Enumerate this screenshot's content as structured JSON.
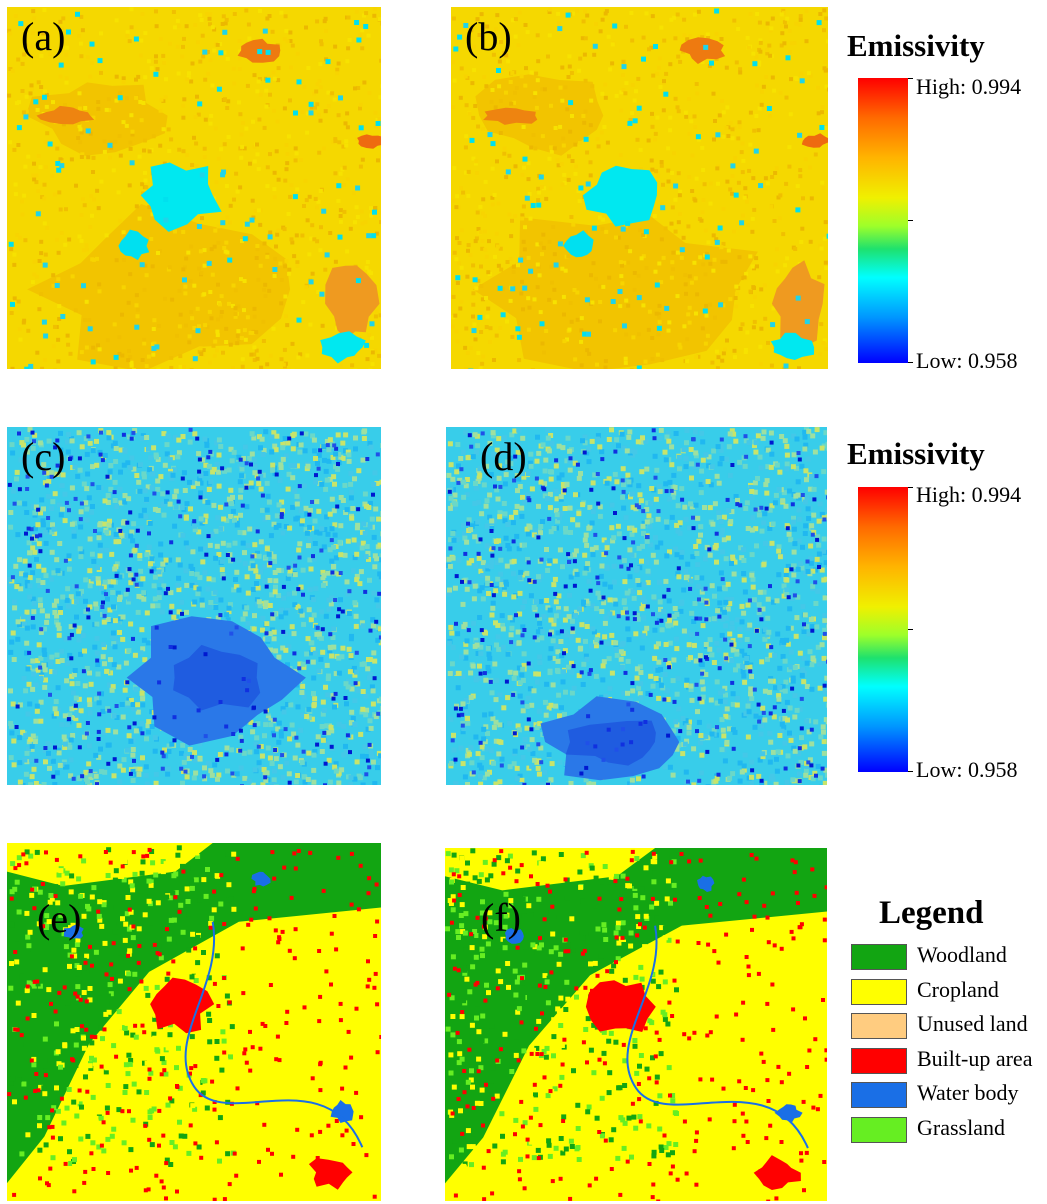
{
  "panels": [
    {
      "label": "(a)",
      "type": "emissivity-warm"
    },
    {
      "label": "(b)",
      "type": "emissivity-warm"
    },
    {
      "label": "(c)",
      "type": "emissivity-cool"
    },
    {
      "label": "(d)",
      "type": "emissivity-cool"
    },
    {
      "label": "(e)",
      "type": "landcover"
    },
    {
      "label": "(f)",
      "type": "landcover"
    }
  ],
  "colorbars": [
    {
      "title": "Emissivity",
      "high_label": "High: 0.994",
      "low_label": "Low: 0.958",
      "high_value": 0.994,
      "low_value": 0.958
    },
    {
      "title": "Emissivity",
      "high_label": "High: 0.994",
      "low_label": "Low: 0.958",
      "high_value": 0.994,
      "low_value": 0.958
    }
  ],
  "colorbar_ramp": [
    "#ff0000",
    "#ff6a00",
    "#ffb400",
    "#f0f000",
    "#9dff2a",
    "#1ee16e",
    "#00ffff",
    "#0096ff",
    "#0000ff"
  ],
  "legend": {
    "title": "Legend",
    "items": [
      {
        "label": "Woodland",
        "color": "#12a512"
      },
      {
        "label": "Cropland",
        "color": "#ffff00"
      },
      {
        "label": "Unused land",
        "color": "#ffcc80"
      },
      {
        "label": "Built-up area",
        "color": "#ff0000"
      },
      {
        "label": "Water body",
        "color": "#1a6fe6"
      },
      {
        "label": "Grassland",
        "color": "#66ee22"
      }
    ]
  }
}
